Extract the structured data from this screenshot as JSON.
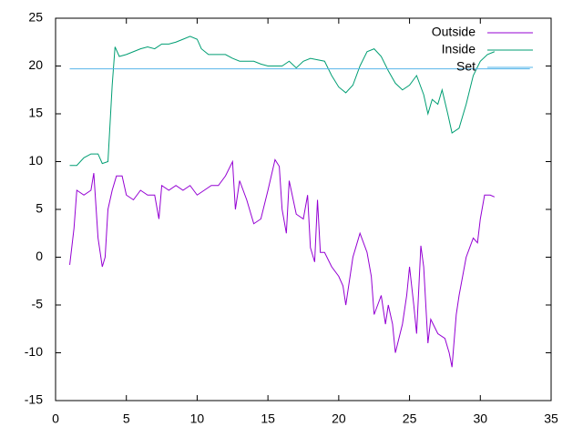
{
  "chart_data": {
    "type": "line",
    "xlim": [
      0,
      35
    ],
    "xticks": [
      0,
      5,
      10,
      15,
      20,
      25,
      30,
      35
    ],
    "ylim": [
      -15,
      25
    ],
    "yticks": [
      -15,
      -10,
      -5,
      0,
      5,
      10,
      15,
      20,
      25
    ],
    "legend": "upper right",
    "series": [
      {
        "name": "Outside",
        "color": "#9400d3",
        "x": [
          1,
          1.3,
          1.5,
          2,
          2.5,
          2.7,
          3,
          3.3,
          3.5,
          3.7,
          4,
          4.3,
          4.7,
          5,
          5.5,
          6,
          6.5,
          7,
          7.3,
          7.5,
          8,
          8.5,
          9,
          9.5,
          10,
          10.5,
          11,
          11.5,
          12,
          12.5,
          12.7,
          13,
          13.5,
          14,
          14.5,
          15,
          15.5,
          15.8,
          16,
          16.3,
          16.5,
          17,
          17.5,
          17.8,
          18,
          18.3,
          18.5,
          18.7,
          19,
          19.5,
          20,
          20.3,
          20.5,
          21,
          21.5,
          22,
          22.3,
          22.5,
          23,
          23.3,
          23.5,
          23.8,
          24,
          24.5,
          24.8,
          25,
          25.3,
          25.5,
          25.8,
          26,
          26.3,
          26.5,
          27,
          27.5,
          27.8,
          28,
          28.3,
          28.5,
          29,
          29.5,
          29.8,
          30,
          30.3,
          30.7,
          31
        ],
        "values": [
          -0.8,
          3,
          7,
          6.5,
          7,
          8.8,
          2,
          -1,
          0,
          5,
          7,
          8.5,
          8.5,
          6.5,
          6,
          7,
          6.5,
          6.5,
          4,
          7.5,
          7,
          7.5,
          7,
          7.5,
          6.5,
          7,
          7.5,
          7.5,
          8.5,
          10,
          5,
          8,
          6,
          3.5,
          4,
          7,
          10.2,
          9.5,
          5,
          2.5,
          8,
          4.5,
          4,
          6.5,
          1,
          -0.5,
          6,
          0.5,
          0.5,
          -1,
          -2,
          -3,
          -5,
          0,
          2.5,
          0.5,
          -2,
          -6,
          -4,
          -7,
          -5,
          -7,
          -10,
          -7,
          -4,
          -1,
          -5,
          -8,
          1.2,
          -1,
          -9,
          -6.5,
          -8,
          -8.5,
          -10,
          -11.5,
          -6,
          -4,
          0,
          2,
          1.5,
          4,
          6.5,
          6.5,
          6.3
        ]
      },
      {
        "name": "Inside",
        "color": "#009e73",
        "x": [
          1,
          1.5,
          2,
          2.5,
          3,
          3.3,
          3.7,
          4,
          4.2,
          4.5,
          5,
          5.5,
          6,
          6.5,
          7,
          7.5,
          8,
          8.5,
          9,
          9.5,
          10,
          10.3,
          10.8,
          11,
          12,
          12.5,
          13,
          14,
          14.5,
          15,
          16,
          16.5,
          17,
          17.5,
          18,
          19,
          19.5,
          20,
          20.5,
          21,
          21.5,
          22,
          22.5,
          23,
          23.5,
          24,
          24.5,
          25,
          25.5,
          26,
          26.3,
          26.6,
          27,
          27.3,
          27.7,
          28,
          28.5,
          29,
          29.5,
          30,
          30.5,
          31
        ],
        "values": [
          9.6,
          9.6,
          10.4,
          10.8,
          10.8,
          9.8,
          10,
          18,
          22,
          21,
          21.2,
          21.5,
          21.8,
          22,
          21.8,
          22.3,
          22.3,
          22.5,
          22.8,
          23.1,
          22.8,
          21.8,
          21.2,
          21.2,
          21.2,
          20.8,
          20.5,
          20.5,
          20.2,
          20,
          20,
          20.5,
          19.8,
          20.5,
          20.8,
          20.5,
          19,
          17.8,
          17.2,
          18,
          20,
          21.5,
          21.8,
          21,
          19.5,
          18.2,
          17.5,
          18,
          19,
          17,
          15,
          16.5,
          16,
          17.5,
          15,
          13,
          13.5,
          16,
          19,
          20.5,
          21.2,
          21.5
        ]
      },
      {
        "name": "Set",
        "color": "#56b4e9",
        "x": [
          1,
          33.5
        ],
        "values": [
          19.7,
          19.7
        ]
      }
    ]
  }
}
